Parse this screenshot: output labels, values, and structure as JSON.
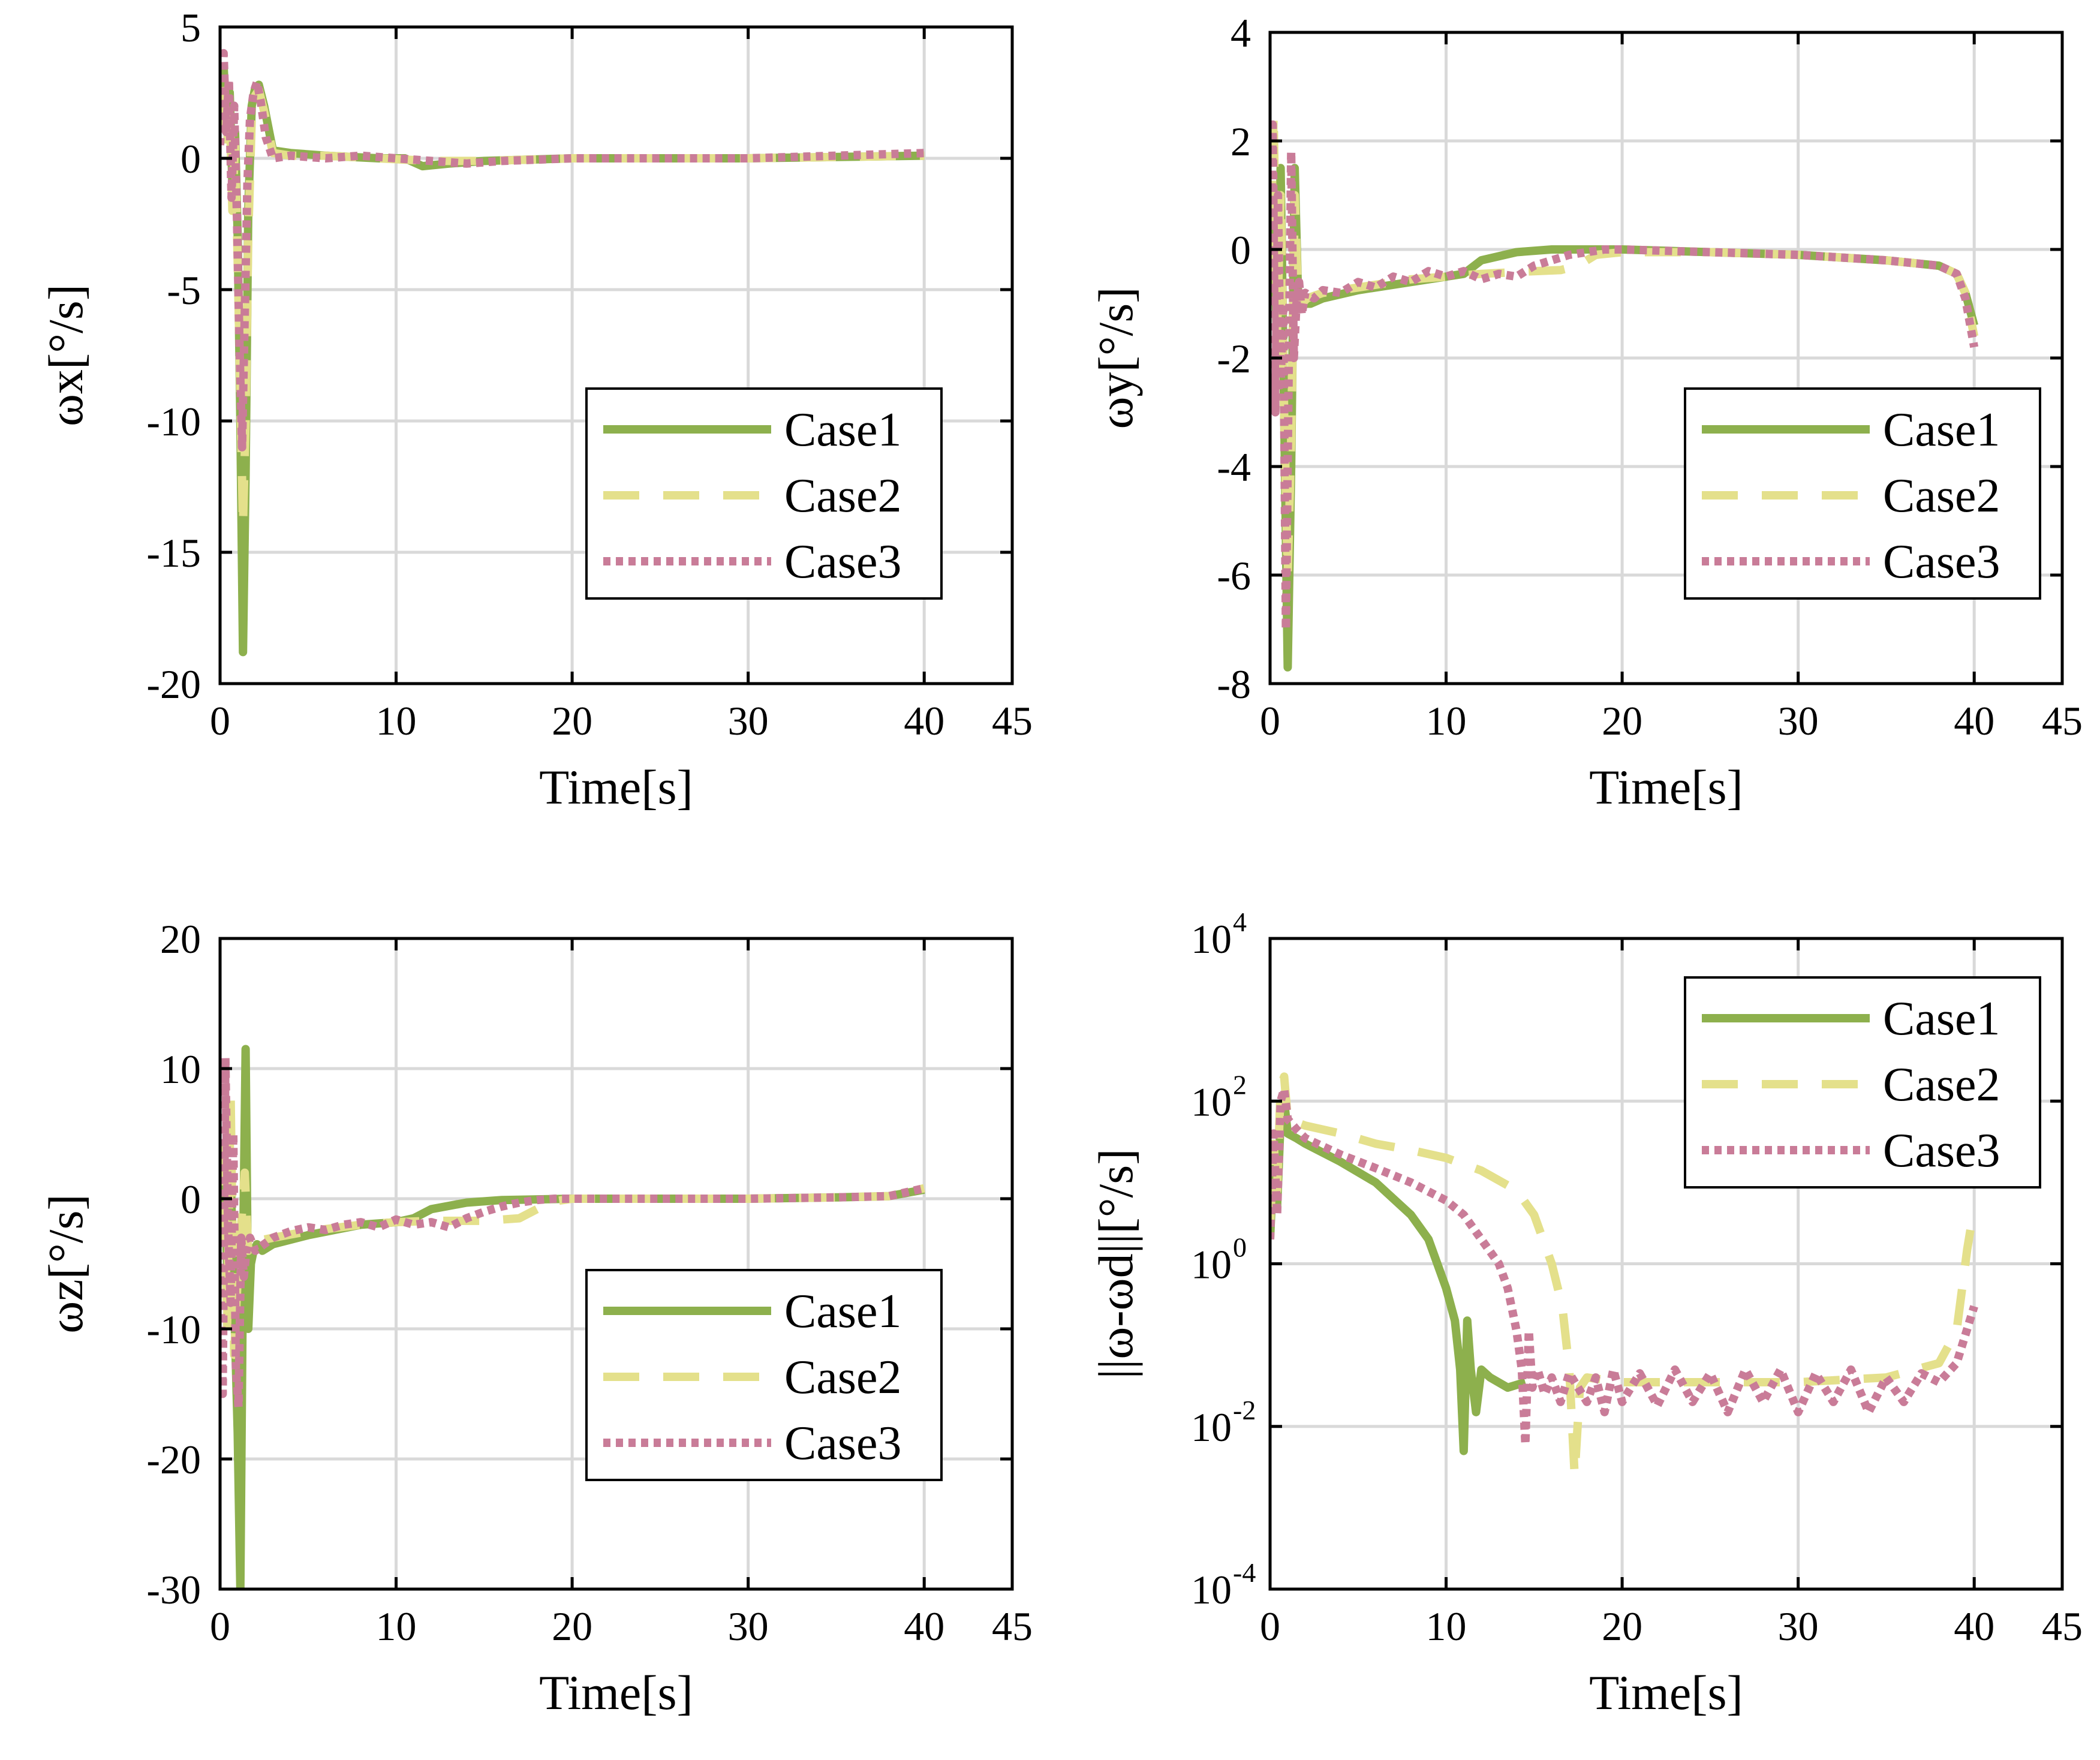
{
  "chart_data": [
    {
      "type": "line",
      "xlabel": "Time[s]",
      "ylabel": "ωx[°/s]",
      "xlim": [
        0,
        45
      ],
      "ylim": [
        -20,
        5
      ],
      "xticks": [
        0,
        10,
        20,
        30,
        40,
        45
      ],
      "yticks": [
        5,
        0,
        -5,
        -10,
        -15,
        -20
      ],
      "grid": true,
      "legend_position": "bottom-right",
      "series": [
        {
          "name": "Case1",
          "color": "#8db04d",
          "dash": "solid",
          "x": [
            0,
            0.2,
            0.4,
            0.55,
            0.7,
            0.85,
            1.0,
            1.15,
            1.3,
            1.45,
            1.6,
            1.8,
            2.0,
            2.2,
            2.5,
            3,
            4,
            6,
            9,
            10.5,
            11.5,
            13,
            15,
            20,
            30,
            40
          ],
          "y": [
            1.5,
            3.5,
            1.0,
            2.5,
            -1.0,
            1.0,
            -3.0,
            -10.0,
            -18.8,
            -12.0,
            -2.0,
            2.0,
            2.7,
            2.8,
            2.0,
            0.3,
            0.2,
            0.1,
            0.0,
            0.0,
            -0.3,
            -0.2,
            -0.1,
            0.0,
            0.0,
            0.1
          ]
        },
        {
          "name": "Case2",
          "color": "#e4e08b",
          "dash": "dashed",
          "x": [
            0,
            0.2,
            0.4,
            0.55,
            0.7,
            0.85,
            1.0,
            1.15,
            1.3,
            1.45,
            1.6,
            1.8,
            2.0,
            2.2,
            2.5,
            3,
            4,
            6,
            9,
            12,
            15,
            20,
            30,
            40
          ],
          "y": [
            1.0,
            3.0,
            0.5,
            2.0,
            -2.0,
            0.5,
            -4.0,
            -9.0,
            -14.0,
            -10.0,
            -3.0,
            1.5,
            2.4,
            2.6,
            1.8,
            0.2,
            0.1,
            0.1,
            0.0,
            -0.1,
            -0.1,
            0.0,
            0.0,
            0.1
          ]
        },
        {
          "name": "Case3",
          "color": "#c97c98",
          "dash": "dotted",
          "x": [
            0,
            0.2,
            0.35,
            0.5,
            0.65,
            0.8,
            0.95,
            1.1,
            1.25,
            1.4,
            1.55,
            1.7,
            1.9,
            2.1,
            2.3,
            2.6,
            3,
            4,
            6,
            8,
            10,
            12,
            14,
            16,
            20,
            30,
            40
          ],
          "y": [
            0.5,
            4.0,
            1.0,
            3.0,
            -1.5,
            2.0,
            -2.0,
            -7.0,
            -11.0,
            -6.0,
            -1.0,
            1.5,
            2.5,
            2.9,
            2.2,
            0.8,
            0.0,
            0.1,
            0.0,
            0.1,
            0.0,
            -0.1,
            -0.2,
            -0.1,
            0.0,
            0.0,
            0.2
          ]
        }
      ]
    },
    {
      "type": "line",
      "xlabel": "Time[s]",
      "ylabel": "ωy[°/s]",
      "xlim": [
        0,
        45
      ],
      "ylim": [
        -8,
        4
      ],
      "xticks": [
        0,
        10,
        20,
        30,
        40,
        45
      ],
      "yticks": [
        4,
        2,
        0,
        -2,
        -4,
        -6,
        -8
      ],
      "grid": true,
      "legend_position": "bottom-right",
      "series": [
        {
          "name": "Case1",
          "color": "#8db04d",
          "dash": "solid",
          "x": [
            0,
            0.2,
            0.4,
            0.6,
            0.8,
            1.0,
            1.2,
            1.4,
            1.6,
            1.8,
            2.0,
            2.3,
            3,
            5,
            8,
            10,
            11,
            12,
            14,
            16,
            20,
            25,
            30,
            35,
            38,
            39,
            39.5,
            40
          ],
          "y": [
            -0.5,
            1.0,
            -2.0,
            1.5,
            -3.0,
            -7.7,
            -4.0,
            1.5,
            -1.0,
            -1.0,
            -1.0,
            -1.0,
            -0.9,
            -0.75,
            -0.6,
            -0.5,
            -0.45,
            -0.2,
            -0.05,
            0.0,
            0.0,
            -0.05,
            -0.1,
            -0.2,
            -0.3,
            -0.45,
            -0.8,
            -1.4
          ]
        },
        {
          "name": "Case2",
          "color": "#e4e08b",
          "dash": "dashed",
          "x": [
            0,
            0.2,
            0.4,
            0.6,
            0.8,
            1.0,
            1.2,
            1.4,
            1.6,
            1.8,
            2.1,
            3,
            5,
            8,
            10,
            12,
            15,
            16.5,
            17.5,
            18.5,
            20,
            25,
            30,
            35,
            38,
            39,
            39.5,
            40
          ],
          "y": [
            -0.5,
            2.5,
            -1.5,
            1.0,
            -3.0,
            -6.0,
            -3.5,
            1.0,
            -1.0,
            -1.0,
            -0.9,
            -0.8,
            -0.7,
            -0.55,
            -0.5,
            -0.45,
            -0.4,
            -0.38,
            -0.3,
            -0.1,
            -0.05,
            -0.05,
            -0.1,
            -0.2,
            -0.3,
            -0.45,
            -0.8,
            -1.6
          ]
        },
        {
          "name": "Case3",
          "color": "#c97c98",
          "dash": "dotted",
          "x": [
            0,
            0.15,
            0.3,
            0.45,
            0.6,
            0.75,
            0.9,
            1.05,
            1.2,
            1.35,
            1.5,
            1.65,
            1.8,
            2.0,
            2.5,
            3,
            4,
            5,
            6,
            7,
            8,
            9,
            10,
            11,
            12,
            13,
            14,
            15,
            16,
            17,
            18,
            19,
            20,
            25,
            30,
            35,
            38,
            39,
            39.5,
            40
          ],
          "y": [
            -1.0,
            2.3,
            -3.0,
            1.0,
            -2.5,
            -1.0,
            -7.0,
            -2.5,
            1.8,
            -2.0,
            -1.0,
            -0.6,
            -1.2,
            -0.8,
            -0.9,
            -0.75,
            -0.8,
            -0.6,
            -0.7,
            -0.5,
            -0.6,
            -0.4,
            -0.5,
            -0.4,
            -0.55,
            -0.45,
            -0.5,
            -0.3,
            -0.2,
            -0.1,
            -0.05,
            0.0,
            0.0,
            -0.05,
            -0.1,
            -0.2,
            -0.3,
            -0.45,
            -0.9,
            -1.8
          ]
        }
      ]
    },
    {
      "type": "line",
      "xlabel": "Time[s]",
      "ylabel": "ωz[°/s]",
      "xlim": [
        0,
        45
      ],
      "ylim": [
        -30,
        20
      ],
      "xticks": [
        0,
        10,
        20,
        30,
        40,
        45
      ],
      "yticks": [
        20,
        10,
        0,
        -10,
        -20,
        -30
      ],
      "grid": true,
      "legend_position": "bottom-right",
      "series": [
        {
          "name": "Case1",
          "color": "#8db04d",
          "dash": "solid",
          "x": [
            0,
            0.2,
            0.4,
            0.6,
            0.8,
            1.0,
            1.15,
            1.3,
            1.45,
            1.6,
            1.75,
            1.9,
            2.1,
            2.4,
            3,
            5,
            8,
            10,
            11,
            12,
            14,
            16,
            20,
            25,
            30,
            35,
            38,
            40
          ],
          "y": [
            -2.0,
            3.0,
            -5.0,
            2.0,
            -8.0,
            -18.0,
            -30.0,
            -5.0,
            11.5,
            -10.0,
            -5.0,
            -4.0,
            -3.5,
            -4.0,
            -3.5,
            -2.8,
            -2.0,
            -1.8,
            -1.5,
            -0.8,
            -0.3,
            -0.1,
            0.0,
            0.0,
            0.0,
            0.1,
            0.2,
            0.7
          ]
        },
        {
          "name": "Case2",
          "color": "#e4e08b",
          "dash": "dashed",
          "x": [
            0,
            0.2,
            0.4,
            0.6,
            0.8,
            1.0,
            1.2,
            1.4,
            1.6,
            1.8,
            2.0,
            2.3,
            3,
            5,
            8,
            10,
            12,
            15,
            17,
            18,
            19,
            20,
            25,
            30,
            35,
            38,
            40
          ],
          "y": [
            -3.0,
            5.0,
            -10.0,
            8.0,
            -12.0,
            -6.0,
            -2.0,
            2.0,
            -4.0,
            -3.5,
            -3.0,
            -3.2,
            -3.0,
            -2.5,
            -2.0,
            -1.8,
            -1.7,
            -1.7,
            -1.5,
            -0.8,
            -0.2,
            0.0,
            0.0,
            0.0,
            0.1,
            0.2,
            0.8
          ]
        },
        {
          "name": "Case3",
          "color": "#c97c98",
          "dash": "dotted",
          "x": [
            0,
            0.15,
            0.3,
            0.45,
            0.6,
            0.75,
            0.9,
            1.05,
            1.2,
            1.35,
            1.5,
            1.7,
            2.0,
            2.5,
            3,
            4,
            5,
            6,
            7,
            8,
            9,
            10,
            11,
            12,
            13,
            14,
            15,
            16,
            17,
            18,
            19,
            20,
            25,
            30,
            35,
            38,
            40
          ],
          "y": [
            -5.0,
            -15.0,
            10.8,
            -2.0,
            -8.0,
            5.0,
            -13.0,
            -16.0,
            -3.0,
            -6.0,
            -4.0,
            -3.0,
            -4.0,
            -3.5,
            -3.0,
            -2.5,
            -2.2,
            -2.4,
            -2.0,
            -1.8,
            -2.2,
            -1.6,
            -2.0,
            -1.8,
            -2.2,
            -1.5,
            -1.0,
            -0.6,
            -0.3,
            -0.1,
            0.0,
            0.0,
            0.0,
            0.0,
            0.1,
            0.2,
            0.8
          ]
        }
      ]
    },
    {
      "type": "line",
      "xlabel": "Time[s]",
      "ylabel": "||ω-ωd||[°/s]",
      "yscale": "log",
      "xlim": [
        0,
        45
      ],
      "ylim": [
        0.0001,
        10000
      ],
      "xticks": [
        0,
        10,
        20,
        30,
        40,
        45
      ],
      "yticks": [
        10000,
        100,
        1,
        0.01,
        0.0001
      ],
      "ytick_labels": [
        {
          "base": "10",
          "exp": "4"
        },
        {
          "base": "10",
          "exp": "2"
        },
        {
          "base": "10",
          "exp": "0"
        },
        {
          "base": "10",
          "exp": "-2"
        },
        {
          "base": "10",
          "exp": "-4"
        }
      ],
      "grid": true,
      "legend_position": "top-right",
      "series": [
        {
          "name": "Case1",
          "color": "#8db04d",
          "dash": "solid",
          "x": [
            0,
            0.2,
            0.4,
            0.6,
            0.8,
            1.0,
            1.5,
            2,
            4,
            6,
            8,
            9,
            10,
            10.5,
            10.8,
            11.0,
            11.2,
            11.4,
            11.7,
            12.0,
            12.5,
            13.5,
            14.5
          ],
          "y": [
            2,
            20,
            5,
            60,
            100,
            40,
            35,
            30,
            18,
            10,
            4,
            2,
            0.5,
            0.2,
            0.05,
            0.005,
            0.2,
            0.05,
            0.015,
            0.05,
            0.04,
            0.03,
            0.035
          ]
        },
        {
          "name": "Case2",
          "color": "#e4e08b",
          "dash": "dashed",
          "x": [
            0,
            0.2,
            0.4,
            0.6,
            0.8,
            1.0,
            2,
            4,
            6,
            8,
            10,
            12,
            14,
            15,
            16,
            16.6,
            17.0,
            17.3,
            17.6,
            18.0,
            20,
            25,
            30,
            35,
            38,
            39,
            39.6,
            40
          ],
          "y": [
            3,
            30,
            8,
            150,
            200,
            60,
            50,
            40,
            30,
            25,
            20,
            14,
            8,
            4,
            1,
            0.3,
            0.05,
            0.0025,
            0.03,
            0.04,
            0.035,
            0.035,
            0.035,
            0.04,
            0.06,
            0.15,
            1.5,
            5
          ]
        },
        {
          "name": "Case3",
          "color": "#c97c98",
          "dash": "dotted",
          "x": [
            0,
            0.2,
            0.4,
            0.6,
            0.8,
            1.0,
            1.5,
            2,
            4,
            6,
            8,
            10,
            11,
            12,
            13,
            13.5,
            14,
            14.3,
            14.5,
            14.7,
            14.9,
            15.2,
            15.6,
            16,
            16.5,
            17,
            18,
            18.5,
            19,
            19.5,
            20,
            21,
            22,
            23,
            24,
            25,
            26,
            27,
            28,
            29,
            30,
            31,
            32,
            33,
            34,
            35,
            36,
            37,
            38,
            39,
            40
          ],
          "y": [
            2,
            40,
            4,
            100,
            140,
            60,
            45,
            35,
            22,
            15,
            10,
            6,
            4,
            2,
            1,
            0.5,
            0.15,
            0.05,
            0.006,
            0.15,
            0.03,
            0.05,
            0.025,
            0.04,
            0.02,
            0.045,
            0.02,
            0.04,
            0.015,
            0.05,
            0.02,
            0.045,
            0.018,
            0.05,
            0.02,
            0.045,
            0.015,
            0.05,
            0.02,
            0.05,
            0.015,
            0.045,
            0.02,
            0.05,
            0.015,
            0.04,
            0.02,
            0.045,
            0.035,
            0.06,
            0.3
          ]
        }
      ]
    }
  ]
}
